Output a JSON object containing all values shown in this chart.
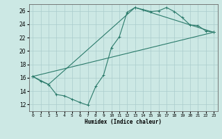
{
  "title": "",
  "xlabel": "Humidex (Indice chaleur)",
  "ylabel": "",
  "bg_color": "#cce8e4",
  "grid_color": "#aacccc",
  "line_color": "#2a7a6a",
  "xlim": [
    -0.5,
    23.5
  ],
  "ylim": [
    11.0,
    27.0
  ],
  "xticks": [
    0,
    1,
    2,
    3,
    4,
    5,
    6,
    7,
    8,
    9,
    10,
    11,
    12,
    13,
    14,
    15,
    16,
    17,
    18,
    19,
    20,
    21,
    22,
    23
  ],
  "yticks": [
    12,
    14,
    16,
    18,
    20,
    22,
    24,
    26
  ],
  "line1_x": [
    0,
    1,
    2,
    3,
    4,
    5,
    6,
    7,
    8,
    9,
    10,
    11,
    12,
    13,
    14,
    15,
    16,
    17,
    18,
    19,
    20,
    21,
    22,
    23
  ],
  "line1_y": [
    16.2,
    15.5,
    15.0,
    13.5,
    13.3,
    12.8,
    12.3,
    11.9,
    14.7,
    16.4,
    20.5,
    22.1,
    25.8,
    26.5,
    26.2,
    25.9,
    26.0,
    26.5,
    25.9,
    25.0,
    23.9,
    23.8,
    23.0,
    22.8
  ],
  "line2_x": [
    0,
    2,
    13,
    23
  ],
  "line2_y": [
    16.2,
    15.0,
    26.5,
    22.8
  ],
  "line3_x": [
    0,
    23
  ],
  "line3_y": [
    16.2,
    22.8
  ]
}
